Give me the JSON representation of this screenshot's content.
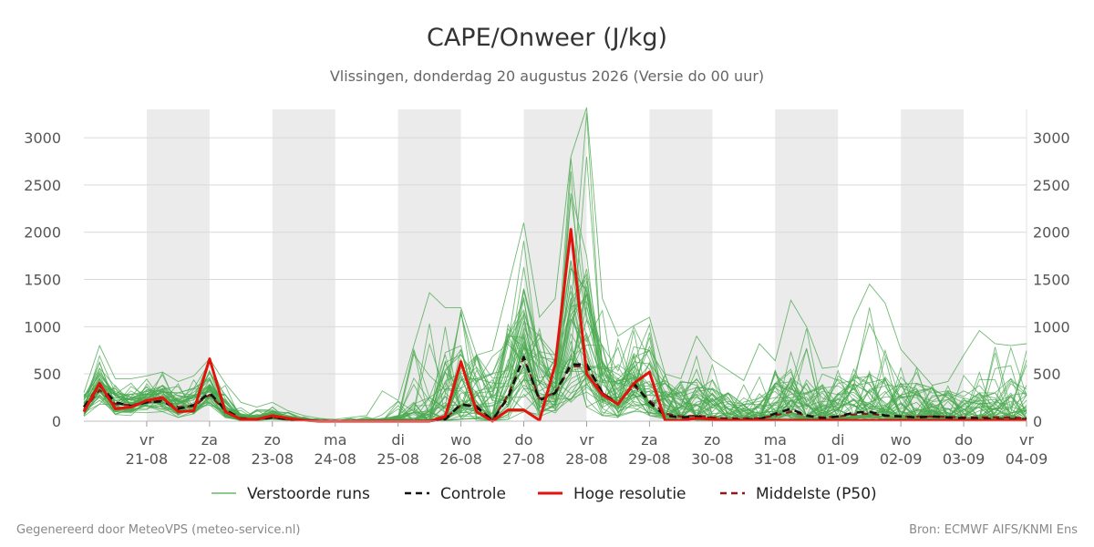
{
  "chart_data": {
    "type": "line",
    "title": "CAPE/Onweer (J/kg)",
    "subtitle": "Vlissingen, donderdag 20 augustus 2026 (Versie do 00 uur)",
    "xlabel": "",
    "ylabel": "",
    "x_start": "2026-08-20",
    "x_range_days": [
      0,
      15
    ],
    "ylim": [
      0,
      3300
    ],
    "y_ticks": [
      0,
      500,
      1000,
      1500,
      2000,
      2500,
      3000
    ],
    "grid": true,
    "legend_position": "bottom-center",
    "x_tick_labels": [
      {
        "day": "vr",
        "date": "21-08"
      },
      {
        "day": "za",
        "date": "22-08"
      },
      {
        "day": "zo",
        "date": "23-08"
      },
      {
        "day": "ma",
        "date": "24-08"
      },
      {
        "day": "di",
        "date": "25-08"
      },
      {
        "day": "wo",
        "date": "26-08"
      },
      {
        "day": "do",
        "date": "27-08"
      },
      {
        "day": "vr",
        "date": "28-08"
      },
      {
        "day": "za",
        "date": "29-08"
      },
      {
        "day": "zo",
        "date": "30-08"
      },
      {
        "day": "ma",
        "date": "31-08"
      },
      {
        "day": "di",
        "date": "01-09"
      },
      {
        "day": "wo",
        "date": "02-09"
      },
      {
        "day": "do",
        "date": "03-09"
      },
      {
        "day": "vr",
        "date": "04-09"
      }
    ],
    "shaded_days": [
      "2026-08-21",
      "2026-08-23",
      "2026-08-25",
      "2026-08-27",
      "2026-08-29",
      "2026-08-31",
      "2026-09-02"
    ],
    "x_step_days": 0.25,
    "legend": [
      {
        "label": "Verstoorde runs",
        "style": "thin-solid",
        "color": "#4aa84f"
      },
      {
        "label": "Controle",
        "style": "dashed",
        "color": "#111111"
      },
      {
        "label": "Hoge resolutie",
        "style": "thick-solid",
        "color": "#e3120b"
      },
      {
        "label": "Middelste (P50)",
        "style": "dashed",
        "color": "#8b1a1a"
      }
    ],
    "series": [
      {
        "name": "Hoge resolutie",
        "color": "#e3120b",
        "values": [
          100,
          400,
          130,
          150,
          220,
          250,
          100,
          110,
          660,
          100,
          20,
          20,
          60,
          30,
          10,
          0,
          0,
          0,
          0,
          0,
          0,
          0,
          0,
          50,
          630,
          100,
          0,
          120,
          120,
          10,
          600,
          2030,
          500,
          280,
          180,
          400,
          520,
          10,
          10,
          30,
          20,
          10,
          10,
          10,
          10,
          10,
          10,
          10,
          10,
          10,
          10,
          10,
          10,
          10,
          10,
          10,
          10,
          10,
          10,
          10,
          10
        ]
      },
      {
        "name": "Controle",
        "color": "#111111",
        "values": [
          150,
          380,
          200,
          160,
          200,
          210,
          130,
          170,
          300,
          120,
          30,
          20,
          40,
          20,
          10,
          0,
          0,
          0,
          0,
          0,
          0,
          0,
          0,
          20,
          180,
          150,
          10,
          250,
          680,
          220,
          300,
          600,
          600,
          300,
          180,
          400,
          200,
          60,
          40,
          50,
          30,
          20,
          20,
          20,
          80,
          130,
          60,
          30,
          50,
          90,
          100,
          60,
          50,
          40,
          50,
          40,
          30,
          30,
          20,
          20,
          20
        ]
      },
      {
        "name": "Middelste (P50)",
        "color": "#8b1a1a",
        "values": [
          120,
          330,
          180,
          170,
          200,
          220,
          150,
          160,
          280,
          110,
          20,
          20,
          40,
          20,
          10,
          0,
          0,
          0,
          0,
          0,
          0,
          0,
          0,
          30,
          170,
          160,
          10,
          280,
          670,
          240,
          300,
          580,
          580,
          300,
          180,
          380,
          220,
          80,
          50,
          60,
          40,
          30,
          30,
          30,
          60,
          100,
          60,
          40,
          50,
          70,
          80,
          60,
          50,
          50,
          50,
          45,
          40,
          40,
          40,
          40,
          30
        ]
      }
    ],
    "ensemble": {
      "name": "Verstoorde runs",
      "color": "#4aa84f",
      "members": 50,
      "envelope": [
        {
          "label": "P10",
          "values": [
            50,
            180,
            70,
            60,
            90,
            100,
            40,
            60,
            150,
            40,
            5,
            5,
            15,
            5,
            0,
            0,
            0,
            0,
            0,
            0,
            0,
            0,
            0,
            0,
            20,
            10,
            0,
            20,
            100,
            50,
            80,
            200,
            150,
            60,
            40,
            100,
            60,
            10,
            5,
            10,
            5,
            5,
            5,
            5,
            10,
            20,
            10,
            5,
            10,
            15,
            20,
            10,
            10,
            5,
            5,
            5,
            5,
            5,
            5,
            5,
            5
          ]
        },
        {
          "label": "P50",
          "values": [
            120,
            330,
            180,
            170,
            200,
            220,
            150,
            160,
            280,
            110,
            20,
            20,
            40,
            20,
            10,
            0,
            0,
            0,
            0,
            0,
            0,
            0,
            0,
            30,
            170,
            160,
            10,
            280,
            670,
            240,
            300,
            580,
            580,
            300,
            180,
            380,
            220,
            80,
            50,
            60,
            40,
            30,
            30,
            30,
            60,
            100,
            60,
            40,
            50,
            70,
            80,
            60,
            50,
            50,
            50,
            45,
            40,
            40,
            40,
            40,
            30
          ]
        },
        {
          "label": "P90",
          "values": [
            250,
            560,
            350,
            320,
            360,
            380,
            300,
            350,
            520,
            280,
            80,
            60,
            110,
            60,
            30,
            10,
            0,
            10,
            20,
            30,
            60,
            200,
            250,
            700,
            900,
            800,
            500,
            900,
            1400,
            900,
            700,
            1700,
            1750,
            800,
            600,
            800,
            750,
            400,
            300,
            450,
            350,
            300,
            250,
            300,
            400,
            550,
            400,
            350,
            400,
            550,
            500,
            450,
            400,
            400,
            350,
            300,
            300,
            300,
            300,
            450,
            450
          ]
        },
        {
          "label": "max",
          "values": [
            300,
            800,
            450,
            450,
            480,
            520,
            420,
            480,
            660,
            400,
            200,
            150,
            200,
            110,
            60,
            30,
            20,
            40,
            60,
            320,
            220,
            800,
            1360,
            1200,
            1200,
            700,
            750,
            1420,
            2100,
            1100,
            1300,
            2800,
            3320,
            1300,
            900,
            1010,
            1100,
            500,
            450,
            900,
            650,
            540,
            430,
            820,
            640,
            1280,
            1000,
            560,
            580,
            1090,
            1450,
            1250,
            760,
            570,
            380,
            420,
            700,
            960,
            820,
            800,
            820
          ]
        }
      ]
    }
  },
  "footer": {
    "left": "Gegenereerd door MeteoVPS (meteo-service.nl)",
    "right": "Bron: ECMWF AIFS/KNMI Ens"
  }
}
